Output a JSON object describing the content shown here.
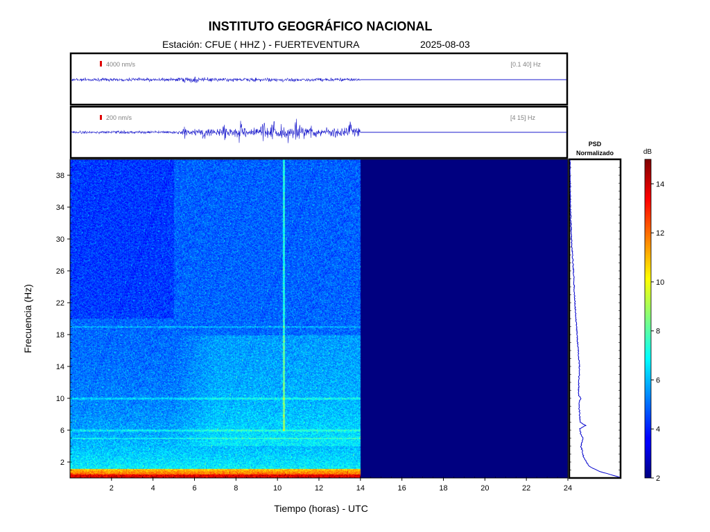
{
  "header": {
    "title": "INSTITUTO GEOGRÁFICO NACIONAL",
    "station": "Estación:  CFUE ( HHZ ) - FUERTEVENTURA",
    "date": "2025-08-03"
  },
  "chart_data": [
    {
      "type": "line",
      "name": "seismogram-broadband",
      "scale_label": "4000 nm/s",
      "band_label": "[0.1 40] Hz",
      "x_range": [
        0,
        24
      ],
      "data_end_hour": 14,
      "amplitude_profile": [
        {
          "hour": 0,
          "amp": 0.1
        },
        {
          "hour": 5,
          "amp": 0.1
        },
        {
          "hour": 6,
          "amp": 0.22
        },
        {
          "hour": 6.3,
          "amp": 0.12
        },
        {
          "hour": 10,
          "amp": 0.12
        },
        {
          "hour": 14,
          "amp": 0.1
        }
      ]
    },
    {
      "type": "line",
      "name": "seismogram-filtered",
      "scale_label": "200 nm/s",
      "band_label": "[4 15] Hz",
      "x_range": [
        0,
        24
      ],
      "data_end_hour": 14,
      "amplitude_profile": [
        {
          "hour": 0,
          "amp": 0.08
        },
        {
          "hour": 5,
          "amp": 0.1
        },
        {
          "hour": 6,
          "amp": 0.22
        },
        {
          "hour": 7,
          "amp": 0.28
        },
        {
          "hour": 9.5,
          "amp": 0.38
        },
        {
          "hour": 10.5,
          "amp": 0.42
        },
        {
          "hour": 12,
          "amp": 0.3
        },
        {
          "hour": 14,
          "amp": 0.26
        }
      ],
      "bursts_hours": [
        5.5,
        6.4,
        7.4,
        8.2,
        9.3,
        9.8,
        10.4,
        10.9,
        11.6,
        12.7,
        13.5
      ]
    },
    {
      "type": "heatmap",
      "name": "spectrogram",
      "xlabel": "Tiempo (horas) - UTC",
      "ylabel": "Frecuencia  (Hz)",
      "x_range": [
        0,
        24
      ],
      "y_range": [
        0,
        40
      ],
      "x_ticks": [
        2,
        4,
        6,
        8,
        10,
        12,
        14,
        16,
        18,
        20,
        22,
        24
      ],
      "y_ticks": [
        2,
        6,
        10,
        14,
        18,
        22,
        26,
        30,
        34,
        38
      ],
      "data_end_hour": 14,
      "empty_fill_db": 2,
      "notable_features": {
        "vertical_line_hour": 10.3,
        "horizontal_lines_hz": [
          5,
          6,
          10,
          19
        ]
      }
    },
    {
      "type": "line",
      "name": "psd-normalized",
      "title": "PSD\nNormalizado",
      "y_range": [
        0,
        40
      ],
      "profile": [
        {
          "hz": 0.1,
          "v": 1.0
        },
        {
          "hz": 0.8,
          "v": 0.6
        },
        {
          "hz": 1.5,
          "v": 0.38
        },
        {
          "hz": 2.5,
          "v": 0.28
        },
        {
          "hz": 4,
          "v": 0.22
        },
        {
          "hz": 5,
          "v": 0.26
        },
        {
          "hz": 5.4,
          "v": 0.22
        },
        {
          "hz": 6.2,
          "v": 0.2
        },
        {
          "hz": 6.6,
          "v": 0.32
        },
        {
          "hz": 7,
          "v": 0.2
        },
        {
          "hz": 9.5,
          "v": 0.18
        },
        {
          "hz": 10,
          "v": 0.22
        },
        {
          "hz": 10.4,
          "v": 0.17
        },
        {
          "hz": 14,
          "v": 0.19
        },
        {
          "hz": 18,
          "v": 0.14
        },
        {
          "hz": 22,
          "v": 0.1
        },
        {
          "hz": 26,
          "v": 0.07
        },
        {
          "hz": 30,
          "v": 0.03
        },
        {
          "hz": 34,
          "v": 0.01
        },
        {
          "hz": 40,
          "v": 0.0
        }
      ]
    },
    {
      "type": "heatmap",
      "name": "colorbar",
      "unit_label": "dB",
      "range": [
        2,
        15
      ],
      "ticks": [
        2,
        4,
        6,
        8,
        10,
        12,
        14
      ],
      "colormap": "jet"
    }
  ]
}
